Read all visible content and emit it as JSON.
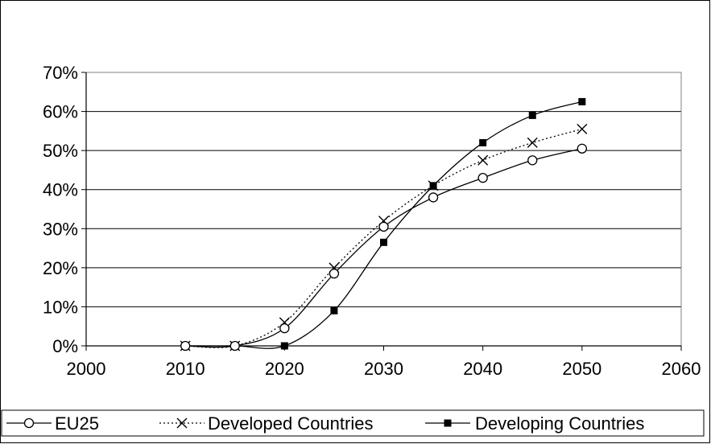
{
  "chart_data": {
    "type": "line",
    "title": "",
    "xlabel": "",
    "ylabel": "",
    "x_ticks": [
      "2000",
      "2010",
      "2020",
      "2030",
      "2040",
      "2050",
      "2060"
    ],
    "y_ticks": [
      "0%",
      "10%",
      "20%",
      "30%",
      "40%",
      "50%",
      "60%",
      "70%"
    ],
    "xlim": [
      2000,
      2060
    ],
    "ylim": [
      0,
      70
    ],
    "grid": "horizontal",
    "legend_position": "bottom",
    "x": [
      2010,
      2015,
      2020,
      2025,
      2030,
      2035,
      2040,
      2045,
      2050
    ],
    "series": [
      {
        "name": "EU25",
        "marker": "open-circle",
        "line_style": "solid",
        "values": [
          0,
          0,
          4.5,
          18.5,
          30.5,
          38,
          43,
          47.5,
          50.5
        ]
      },
      {
        "name": "Developed Countries",
        "marker": "x",
        "line_style": "dotted",
        "values": [
          0,
          0,
          6,
          20,
          32,
          41,
          47.5,
          52,
          55.5
        ]
      },
      {
        "name": "Developing Countries",
        "marker": "filled-square",
        "line_style": "solid",
        "values": [
          0,
          0,
          0,
          9,
          26.5,
          41,
          52,
          59,
          62.5
        ]
      }
    ]
  }
}
